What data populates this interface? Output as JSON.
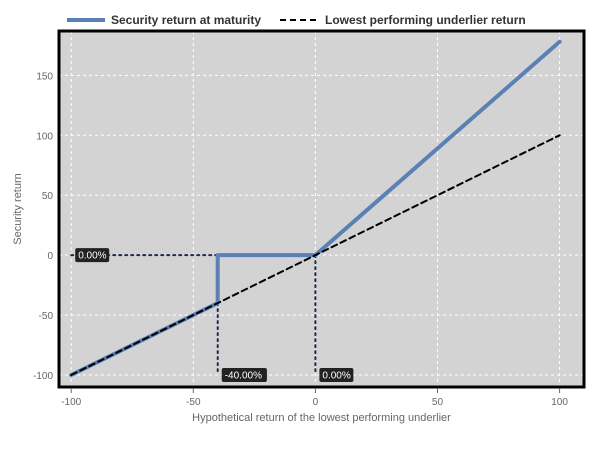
{
  "chart_data": {
    "type": "line",
    "xlabel": "Hypothetical return of the lowest performing underlier",
    "ylabel": "Security return",
    "xlim": [
      -105,
      110
    ],
    "ylim": [
      -110,
      187
    ],
    "xticks": [
      -100,
      -50,
      0,
      50,
      100
    ],
    "yticks": [
      -100,
      -50,
      0,
      50,
      100,
      150
    ],
    "grid": true,
    "legend_position": "top",
    "colors": {
      "security": "#5b80b6",
      "underlier": "#000000",
      "plot_background": "#d3d3d3",
      "guide": "#1c2a50",
      "label_background": "#222222"
    },
    "series": [
      {
        "name": "Security return at maturity",
        "style": "solid",
        "x": [
          -100,
          -40,
          -40,
          0,
          100
        ],
        "y": [
          -100,
          -40,
          0,
          0,
          178
        ]
      },
      {
        "name": "Lowest performing underlier return",
        "style": "dashed",
        "x": [
          -100,
          100
        ],
        "y": [
          -100,
          100
        ]
      }
    ],
    "guides": [
      {
        "x": [
          -100,
          0
        ],
        "y": [
          0,
          0
        ]
      },
      {
        "x": [
          -40,
          -40
        ],
        "y": [
          0,
          -100
        ]
      },
      {
        "x": [
          0,
          0
        ],
        "y": [
          0,
          -100
        ]
      }
    ],
    "annotations": [
      {
        "text": "0.00%",
        "x": -100,
        "y": 0
      },
      {
        "text": "-40.00%",
        "x": -40,
        "y": -100
      },
      {
        "text": "0.00%",
        "x": 0,
        "y": -100
      }
    ]
  }
}
